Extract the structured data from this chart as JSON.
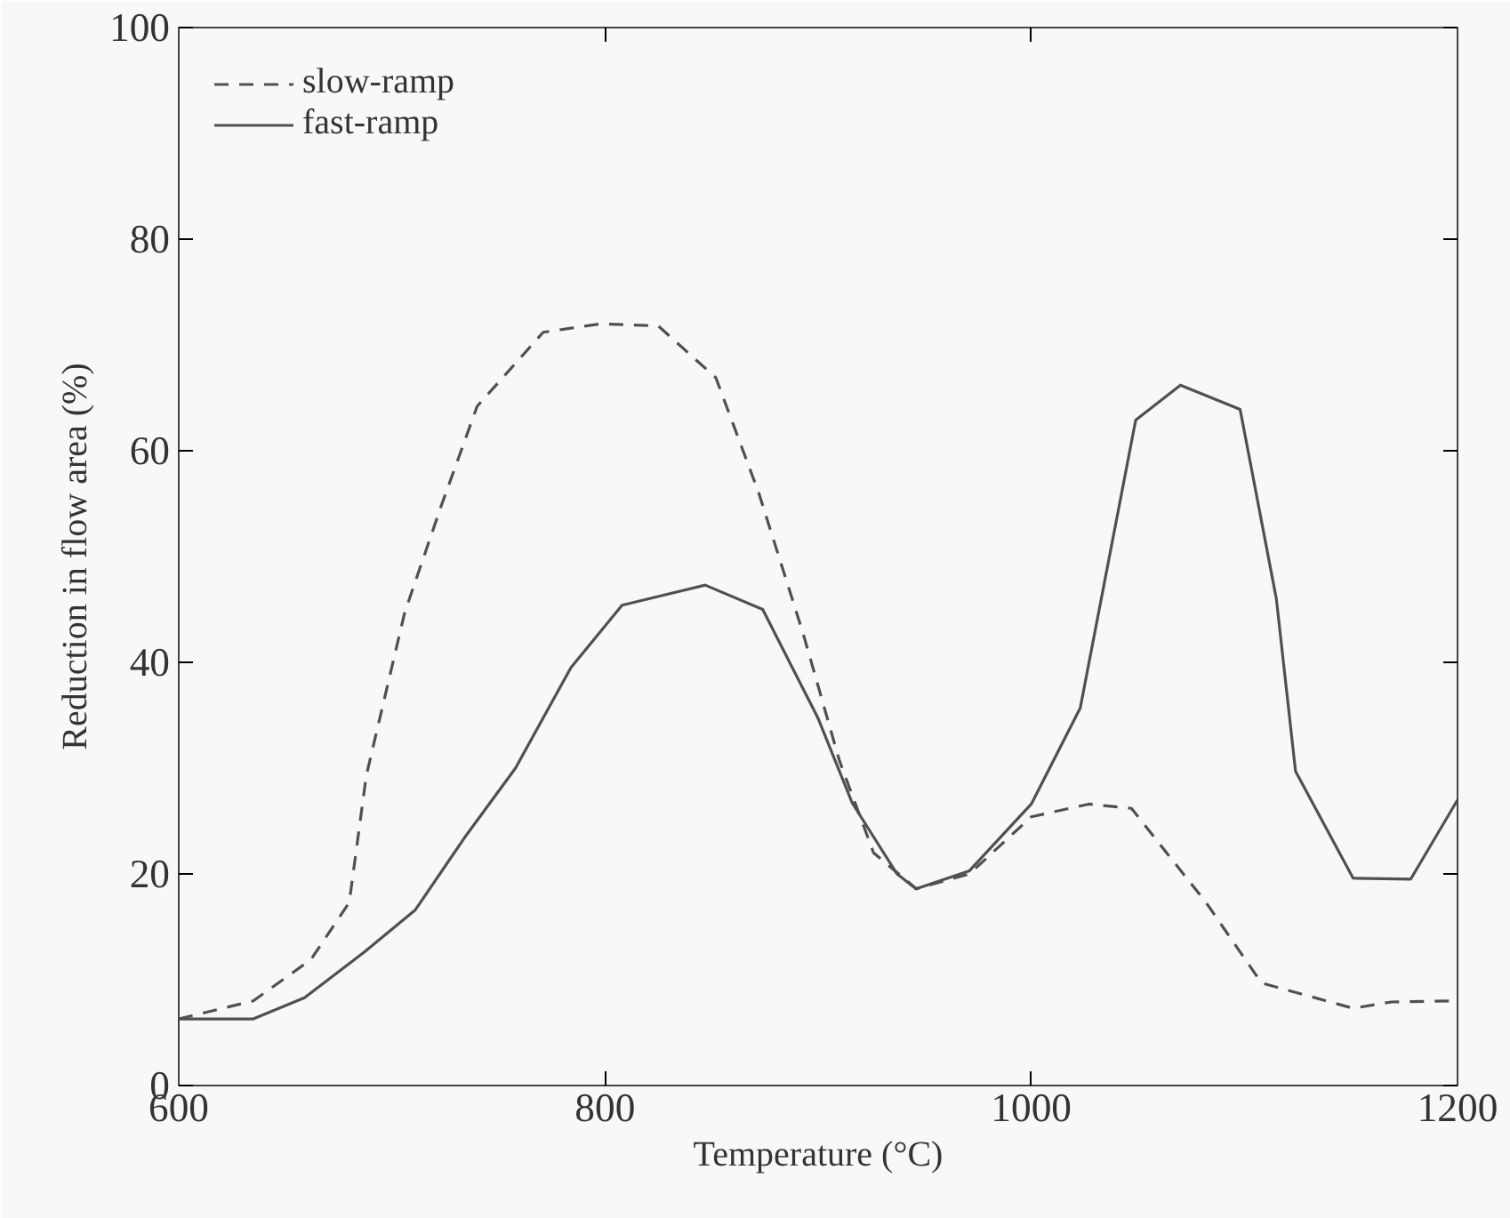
{
  "chart_data": {
    "type": "line",
    "xlabel": "Temperature (°C)",
    "ylabel": "Reduction in flow area (%)",
    "xlim": [
      600,
      1200
    ],
    "ylim": [
      0,
      100
    ],
    "xticks": [
      600,
      800,
      1000,
      1200
    ],
    "yticks": [
      0,
      20,
      40,
      60,
      80,
      100
    ],
    "grid": false,
    "legend": "top left",
    "marker": "none",
    "series": [
      {
        "name": "slow-ramp",
        "color": "#505050",
        "line_style": "dashed",
        "x": [
          600,
          635,
          662,
          680,
          688,
          706,
          723,
          740,
          771,
          798,
          825,
          852,
          872,
          893,
          910,
          926,
          946,
          971,
          1000,
          1027,
          1047,
          1082,
          1108,
          1151,
          1169,
          1200
        ],
        "values": [
          6.3,
          8,
          11.9,
          17.3,
          29.3,
          44.7,
          54.7,
          64.2,
          71.2,
          72,
          71.8,
          66.9,
          56.1,
          42.7,
          30.7,
          22,
          18.6,
          20,
          25.4,
          26.6,
          26.2,
          17.3,
          9.7,
          7.3,
          7.9,
          8
        ]
      },
      {
        "name": "fast-ramp",
        "color": "#505050",
        "line_style": "solid",
        "x": [
          600,
          635,
          659,
          687,
          711,
          734,
          758,
          784,
          808,
          847,
          874,
          900,
          916,
          937,
          946,
          971,
          1000,
          1023,
          1049,
          1070,
          1098,
          1115,
          1124,
          1151,
          1178,
          1200
        ],
        "values": [
          6.3,
          6.3,
          8.3,
          12.6,
          16.6,
          23.4,
          30,
          39.5,
          45.4,
          47.3,
          45,
          34.7,
          26.7,
          20,
          18.6,
          20.3,
          26.6,
          35.7,
          62.9,
          66.2,
          63.9,
          46,
          29.7,
          19.6,
          19.5,
          27
        ]
      }
    ]
  }
}
